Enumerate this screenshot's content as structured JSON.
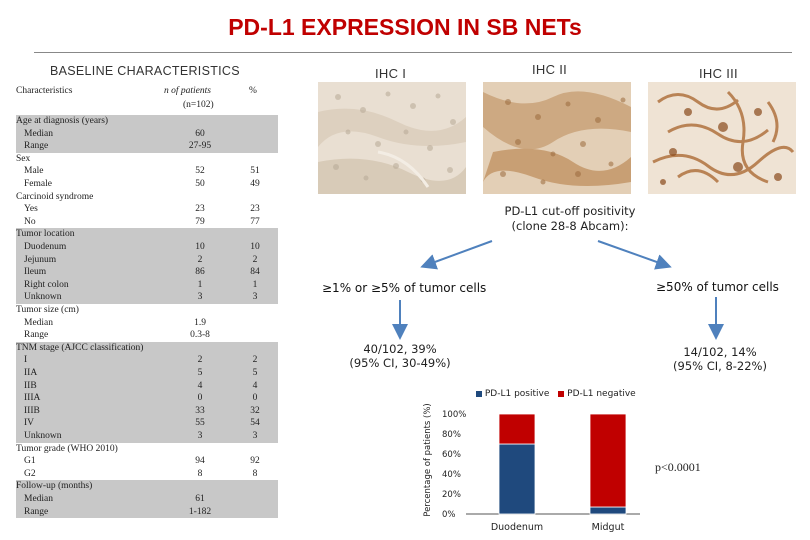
{
  "title": "PD-L1 EXPRESSION IN SB NETs",
  "baseline_heading": "BASELINE CHARACTERISTICS",
  "table": {
    "header": {
      "characteristics": "Characteristics",
      "n_patients": "n of patients",
      "n_total": "(n=102)",
      "percent": "%"
    },
    "rows": [
      {
        "label": "Age at diagnosis (years)",
        "n": "",
        "pct": "",
        "indent": false,
        "shade": true
      },
      {
        "label": "Median",
        "n": "60",
        "pct": "",
        "indent": true,
        "shade": true
      },
      {
        "label": "Range",
        "n": "27-95",
        "pct": "",
        "indent": true,
        "shade": true
      },
      {
        "label": "Sex",
        "n": "",
        "pct": "",
        "indent": false,
        "shade": false
      },
      {
        "label": "Male",
        "n": "52",
        "pct": "51",
        "indent": true,
        "shade": false
      },
      {
        "label": "Female",
        "n": "50",
        "pct": "49",
        "indent": true,
        "shade": false
      },
      {
        "label": "Carcinoid syndrome",
        "n": "",
        "pct": "",
        "indent": false,
        "shade": false
      },
      {
        "label": "Yes",
        "n": "23",
        "pct": "23",
        "indent": true,
        "shade": false
      },
      {
        "label": "No",
        "n": "79",
        "pct": "77",
        "indent": true,
        "shade": false
      },
      {
        "label": "Tumor location",
        "n": "",
        "pct": "",
        "indent": false,
        "shade": true
      },
      {
        "label": "Duodenum",
        "n": "10",
        "pct": "10",
        "indent": true,
        "shade": true
      },
      {
        "label": "Jejunum",
        "n": "2",
        "pct": "2",
        "indent": true,
        "shade": true
      },
      {
        "label": "Ileum",
        "n": "86",
        "pct": "84",
        "indent": true,
        "shade": true
      },
      {
        "label": "Right colon",
        "n": "1",
        "pct": "1",
        "indent": true,
        "shade": true
      },
      {
        "label": "Unknown",
        "n": "3",
        "pct": "3",
        "indent": true,
        "shade": true
      },
      {
        "label": "Tumor size (cm)",
        "n": "",
        "pct": "",
        "indent": false,
        "shade": false
      },
      {
        "label": "Median",
        "n": "1.9",
        "pct": "",
        "indent": true,
        "shade": false
      },
      {
        "label": "Range",
        "n": "0.3-8",
        "pct": "",
        "indent": true,
        "shade": false
      },
      {
        "label": "TNM stage (AJCC classification)",
        "n": "",
        "pct": "",
        "indent": false,
        "shade": true
      },
      {
        "label": "I",
        "n": "2",
        "pct": "2",
        "indent": true,
        "shade": true
      },
      {
        "label": "IIA",
        "n": "5",
        "pct": "5",
        "indent": true,
        "shade": true
      },
      {
        "label": "IIB",
        "n": "4",
        "pct": "4",
        "indent": true,
        "shade": true
      },
      {
        "label": "IIIA",
        "n": "0",
        "pct": "0",
        "indent": true,
        "shade": true
      },
      {
        "label": "IIIB",
        "n": "33",
        "pct": "32",
        "indent": true,
        "shade": true
      },
      {
        "label": "IV",
        "n": "55",
        "pct": "54",
        "indent": true,
        "shade": true
      },
      {
        "label": "Unknown",
        "n": "3",
        "pct": "3",
        "indent": true,
        "shade": true
      },
      {
        "label": "Tumor grade (WHO 2010)",
        "n": "",
        "pct": "",
        "indent": false,
        "shade": false
      },
      {
        "label": "G1",
        "n": "94",
        "pct": "92",
        "indent": true,
        "shade": false
      },
      {
        "label": "G2",
        "n": "8",
        "pct": "8",
        "indent": true,
        "shade": false
      },
      {
        "label": "Follow-up (months)",
        "n": "",
        "pct": "",
        "indent": false,
        "shade": true
      },
      {
        "label": "Median",
        "n": "61",
        "pct": "",
        "indent": true,
        "shade": true
      },
      {
        "label": "Range",
        "n": "1-182",
        "pct": "",
        "indent": true,
        "shade": true
      }
    ]
  },
  "ihc": {
    "labels": [
      "IHC I",
      "IHC II",
      "IHC III"
    ]
  },
  "cutoff_text": [
    "PD-L1 cut-off positivity",
    "(clone 28-8 Abcam):"
  ],
  "branches": {
    "left": {
      "label": "≥1% or ≥5% of tumor cells",
      "result": [
        "40/102, 39%",
        "(95% CI, 30-49%)"
      ]
    },
    "right": {
      "label": "≥50% of tumor cells",
      "result": [
        "14/102, 14%",
        "(95% CI, 8-22%)"
      ]
    }
  },
  "colors": {
    "title": "#c00000",
    "arrow": "#4f81bd",
    "positive": "#1f497d",
    "negative": "#c00000"
  },
  "chart_data": {
    "type": "bar",
    "stacked": true,
    "categories": [
      "Duodenum",
      "Midgut"
    ],
    "series": [
      {
        "name": "PD-L1 positive",
        "values": [
          70,
          7
        ]
      },
      {
        "name": "PD-L1 negative",
        "values": [
          30,
          93
        ]
      }
    ],
    "ylabel": "Percentage of patients (%)",
    "ylim": [
      0,
      100
    ],
    "yticks": [
      "0%",
      "20%",
      "40%",
      "60%",
      "80%",
      "100%"
    ],
    "legend": "top",
    "annotation": "p<0.0001"
  }
}
